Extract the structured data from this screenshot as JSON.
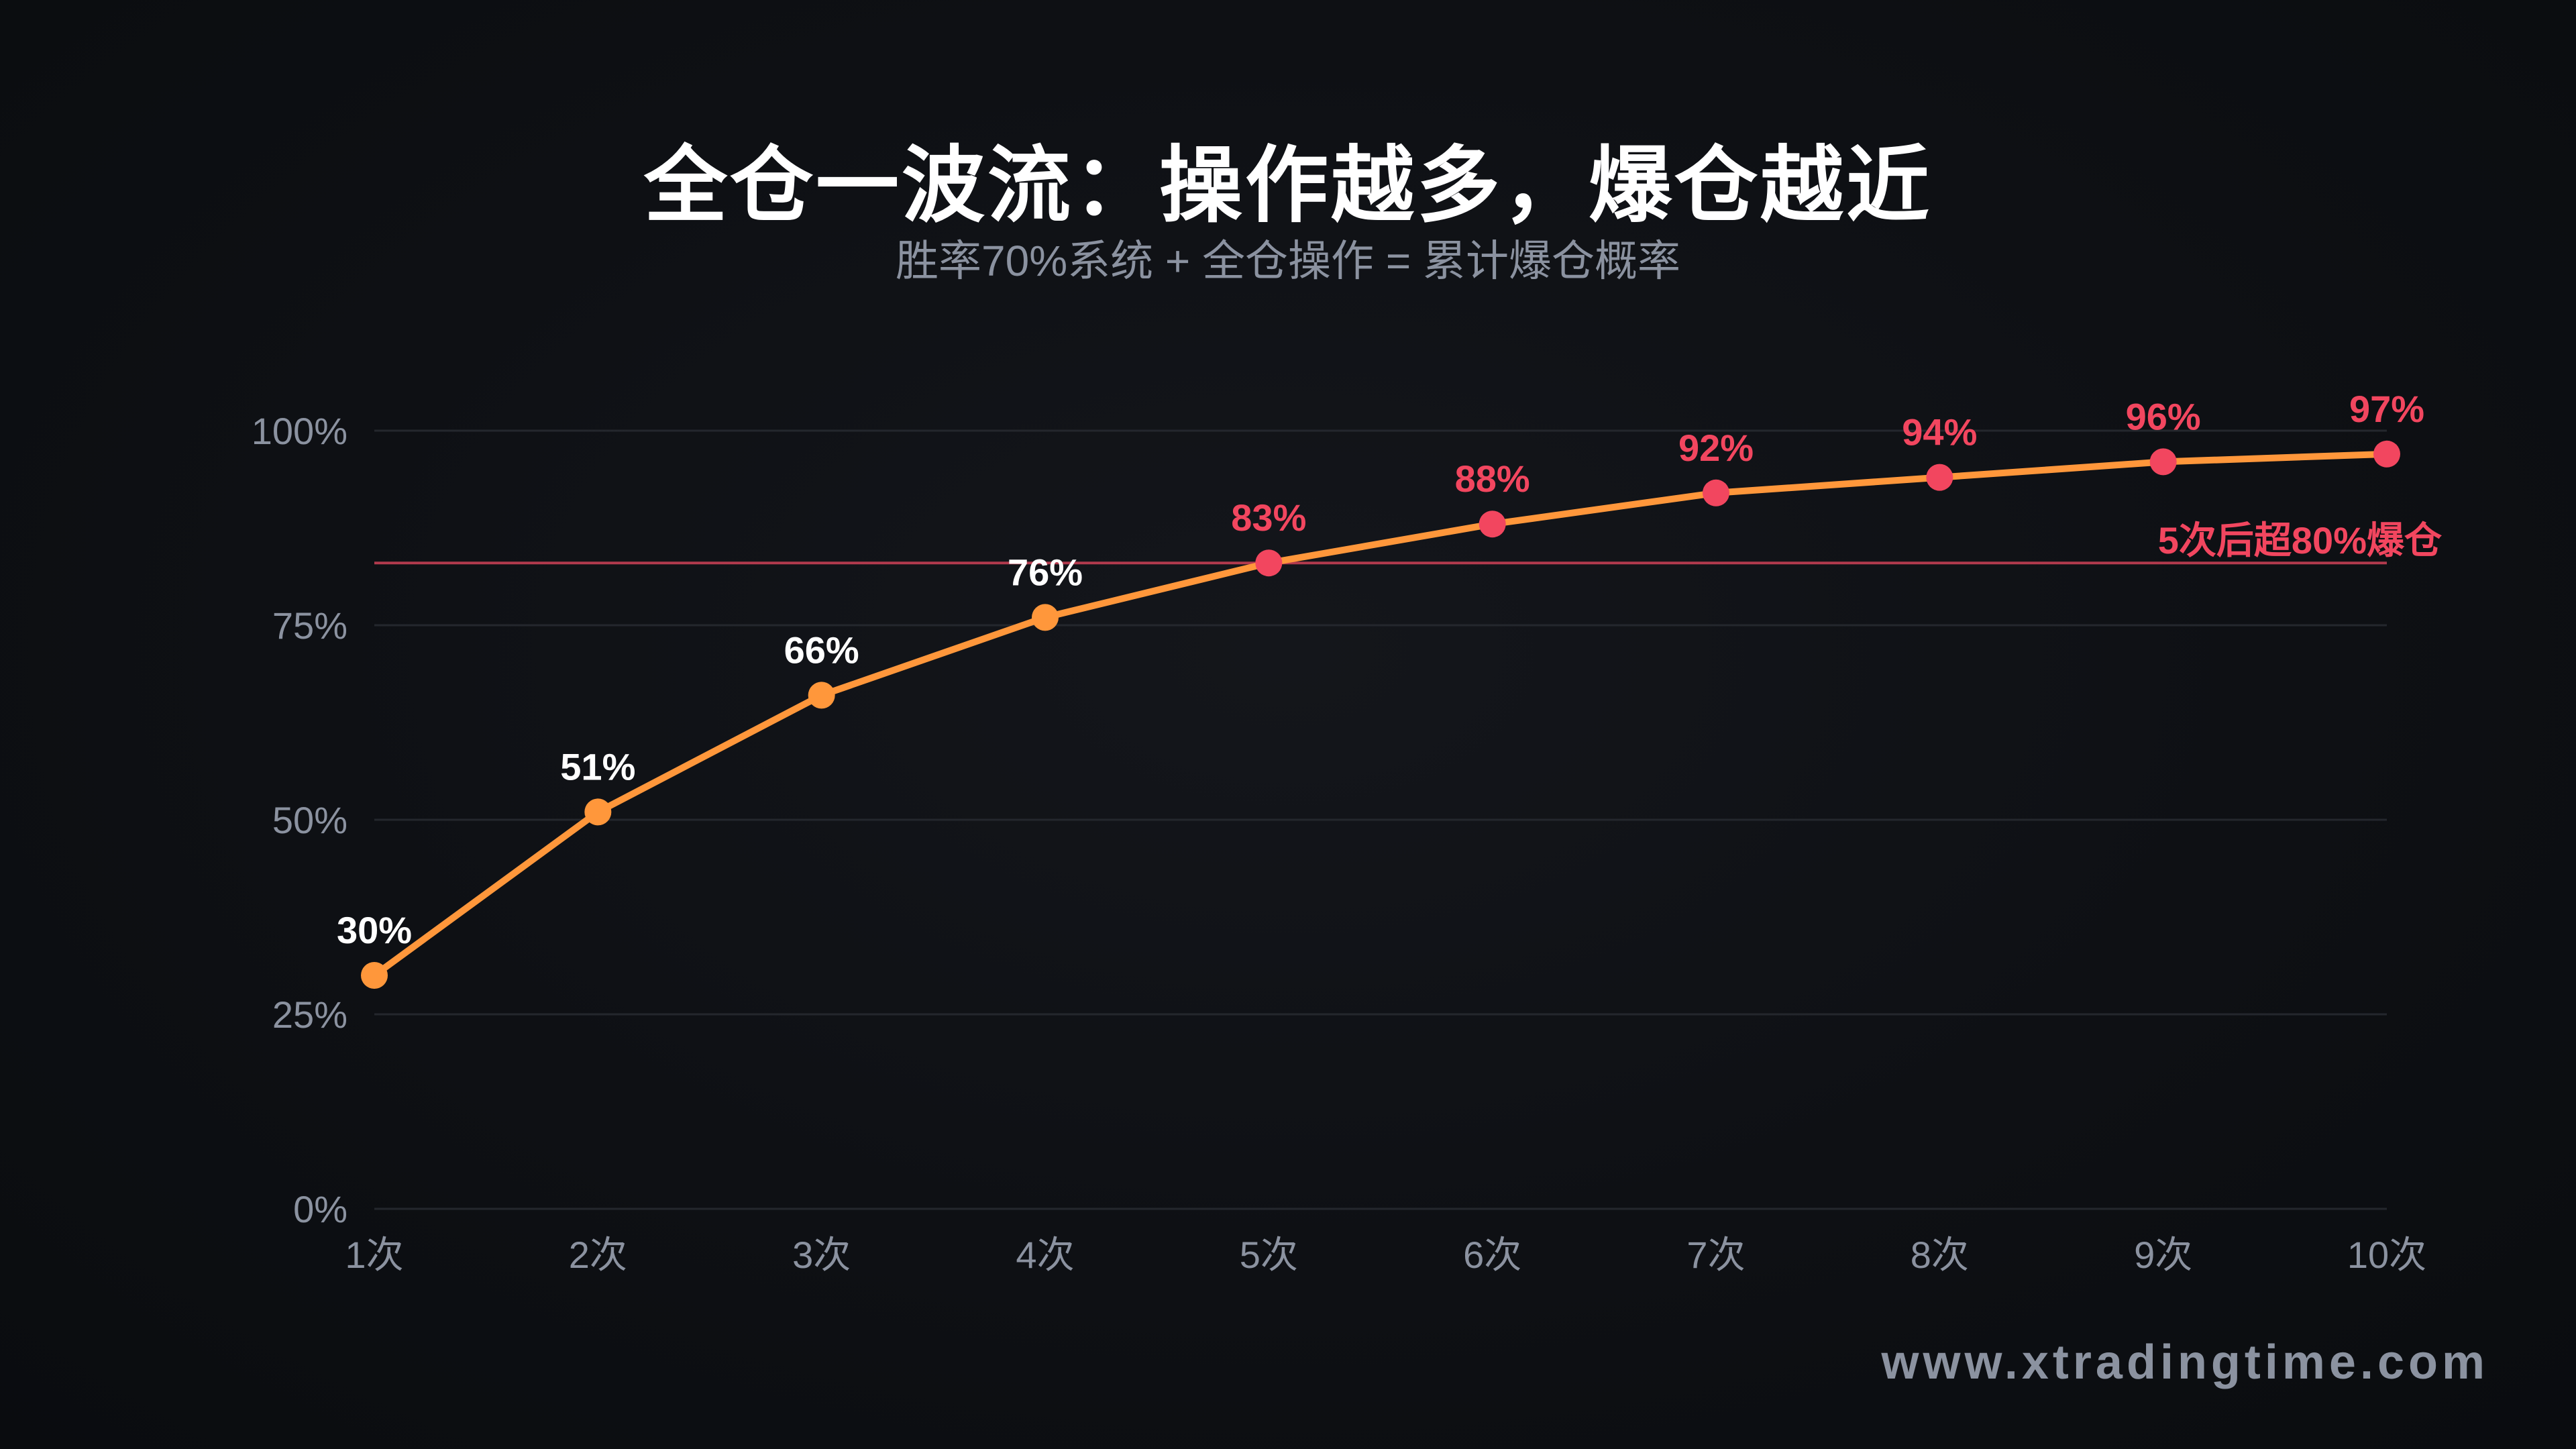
{
  "header": {
    "title": "全仓一波流：操作越多，爆仓越近",
    "subtitle": "胜率70%系统 + 全仓操作 = 累计爆仓概率"
  },
  "watermark": "www.xtradingtime.com",
  "colors": {
    "background": "#0e1014",
    "line": "#ff973b",
    "safe_point": "#ff973b",
    "danger_point": "#f2465f",
    "threshold_line": "#b23a4d",
    "gridline": "#24272d",
    "axis_text": "#8b92a0",
    "safe_label": "#ffffff",
    "danger_label": "#f2465f"
  },
  "chart_data": {
    "type": "line",
    "title": "全仓一波流：操作越多，爆仓越近",
    "subtitle": "胜率70%系统 + 全仓操作 = 累计爆仓概率",
    "xlabel": "",
    "ylabel": "",
    "categories": [
      "1次",
      "2次",
      "3次",
      "4次",
      "5次",
      "6次",
      "7次",
      "8次",
      "9次",
      "10次"
    ],
    "series": [
      {
        "name": "累计爆仓概率",
        "values": [
          30,
          51,
          66,
          76,
          83,
          88,
          92,
          94,
          96,
          97
        ]
      }
    ],
    "data_labels": [
      "30%",
      "51%",
      "66%",
      "76%",
      "83%",
      "88%",
      "92%",
      "94%",
      "96%",
      "97%"
    ],
    "ylim": [
      0,
      100
    ],
    "yticks": [
      "0%",
      "25%",
      "50%",
      "75%",
      "100%"
    ],
    "grid": true,
    "legend": null,
    "threshold": {
      "value": 83,
      "label": "5次后超80%爆仓"
    },
    "danger_from_index": 4
  }
}
